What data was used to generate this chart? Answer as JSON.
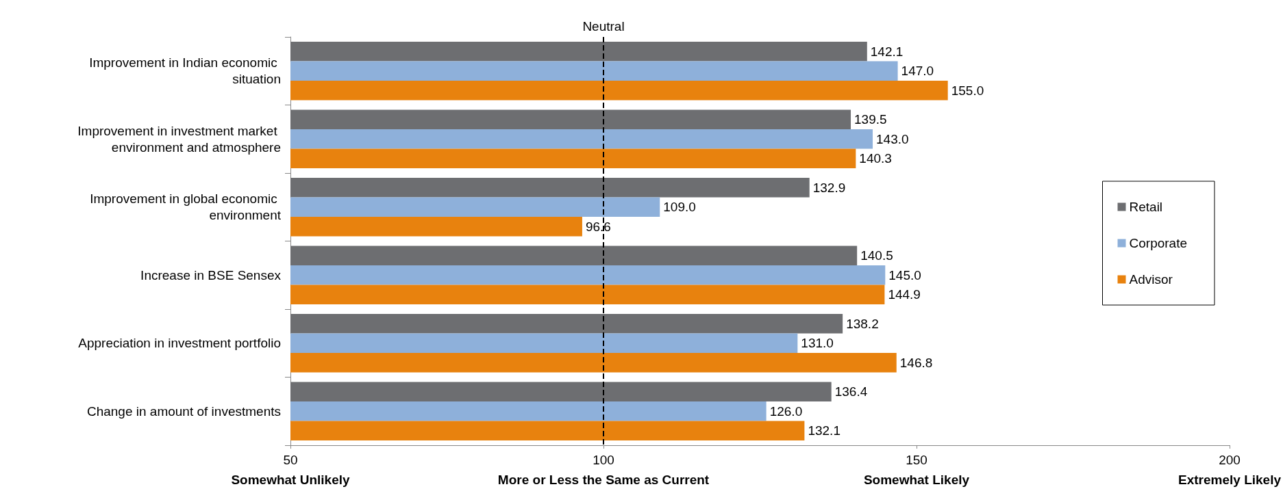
{
  "chart_data": {
    "type": "bar",
    "orientation": "horizontal",
    "categories": [
      "Improvement in Indian economic situation",
      "Improvement in investment market environment and atmosphere",
      "Improvement in global economic environment",
      "Increase in BSE Sensex",
      "Appreciation in investment portfolio",
      "Change in amount of investments"
    ],
    "series": [
      {
        "name": "Retail",
        "color": "#6d6e71",
        "values": [
          142.1,
          139.5,
          132.9,
          140.5,
          138.2,
          136.4
        ],
        "value_labels": [
          "142.1",
          "139.5",
          "132.9",
          "140.5",
          "138.2",
          "136.4"
        ]
      },
      {
        "name": "Corporate",
        "color": "#8eb0da",
        "values": [
          147.0,
          143.0,
          109.0,
          145.0,
          131.0,
          126.0
        ],
        "value_labels": [
          "147.0",
          "143.0",
          "109.0",
          "145.0",
          "131.0",
          "126.0"
        ]
      },
      {
        "name": "Advisor",
        "color": "#e8820e",
        "values": [
          155.0,
          140.3,
          96.6,
          144.9,
          146.8,
          132.1
        ],
        "value_labels": [
          "155.0",
          "140.3",
          "96.6",
          "144.9",
          "146.8",
          "132.1"
        ]
      }
    ],
    "xlim": [
      50,
      200
    ],
    "xticks": [
      {
        "value": 50,
        "label": "50\nSomewhat Unlikely"
      },
      {
        "value": 100,
        "label": "100\nMore or Less the Same as Current"
      },
      {
        "value": 150,
        "label": "150\nSomewhat Likely"
      },
      {
        "value": 200,
        "label": "200\nExtremely Likely"
      }
    ],
    "ref_lines": [
      {
        "axis": "x",
        "value": 100,
        "label": "Neutral",
        "color": "#000000",
        "line_style": "dashed"
      }
    ],
    "grid": false,
    "legend": "right"
  }
}
